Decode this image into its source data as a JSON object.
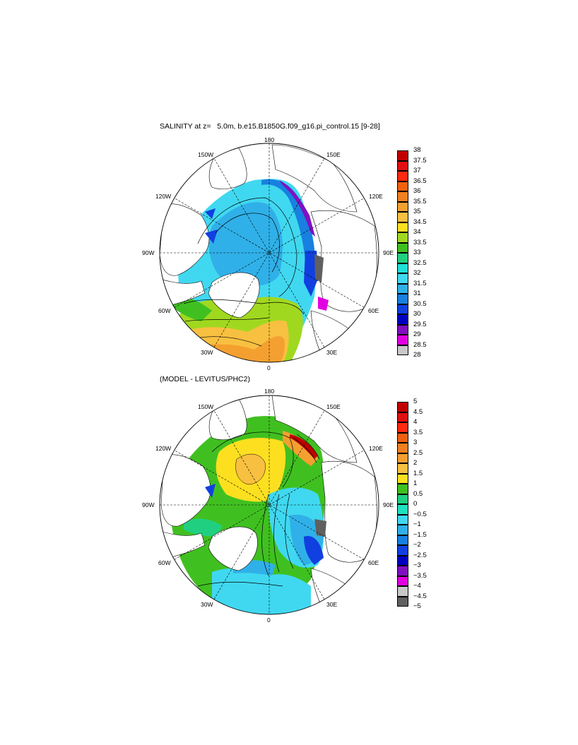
{
  "panel1": {
    "title": "SALINITY at z=   5.0m, b.e15.B1850G.f09_g16.pi_control.15 [9-28]",
    "lon_labels": {
      "n180": "180",
      "n150w": "150W",
      "n150e": "150E",
      "n120w": "120W",
      "n120e": "120E",
      "n90w": "90W",
      "n90e": "90E",
      "n60w": "60W",
      "n60e": "60E",
      "n30w": "30W",
      "n30e": "30E",
      "n0": "0"
    },
    "colorbar": {
      "levels": [
        "38",
        "37.5",
        "37",
        "36.5",
        "36",
        "35.5",
        "35",
        "34.5",
        "34",
        "33.5",
        "33",
        "32.5",
        "32",
        "31.5",
        "31",
        "30.5",
        "30",
        "29.5",
        "29",
        "28.5",
        "28"
      ],
      "colors": [
        "#c00000",
        "#e01010",
        "#ff2a10",
        "#f06010",
        "#f08020",
        "#f4a030",
        "#f8c040",
        "#fce020",
        "#a0d820",
        "#40c020",
        "#20d080",
        "#20e0d8",
        "#40d8f0",
        "#30b0e8",
        "#1880e0",
        "#1040e0",
        "#0000c0",
        "#8010c0",
        "#e000e0",
        "#c8c8c8"
      ]
    }
  },
  "panel2": {
    "title": "(MODEL - LEVITUS/PHC2)",
    "lon_labels": {
      "n180": "180",
      "n150w": "150W",
      "n150e": "150E",
      "n120w": "120W",
      "n120e": "120E",
      "n90w": "90W",
      "n90e": "90E",
      "n60w": "60W",
      "n60e": "60E",
      "n30w": "30W",
      "n30e": "30E",
      "n0": "0"
    },
    "colorbar": {
      "levels": [
        "5",
        "4.5",
        "4",
        "3.5",
        "3",
        "2.5",
        "2",
        "1.5",
        "1",
        "0.5",
        "0",
        "−0.5",
        "−1",
        "−1.5",
        "−2",
        "−2.5",
        "−3",
        "−3.5",
        "−4",
        "−4.5",
        "−5"
      ],
      "colors": [
        "#c00000",
        "#e01010",
        "#ff2a10",
        "#f06010",
        "#f08020",
        "#f4a030",
        "#f8c040",
        "#fce020",
        "#40c020",
        "#20d080",
        "#20e0c0",
        "#40d8f0",
        "#30b0e8",
        "#1880e0",
        "#1040e0",
        "#0000c0",
        "#8010c0",
        "#e000e0",
        "#c8c8c8",
        "#606060"
      ]
    }
  }
}
